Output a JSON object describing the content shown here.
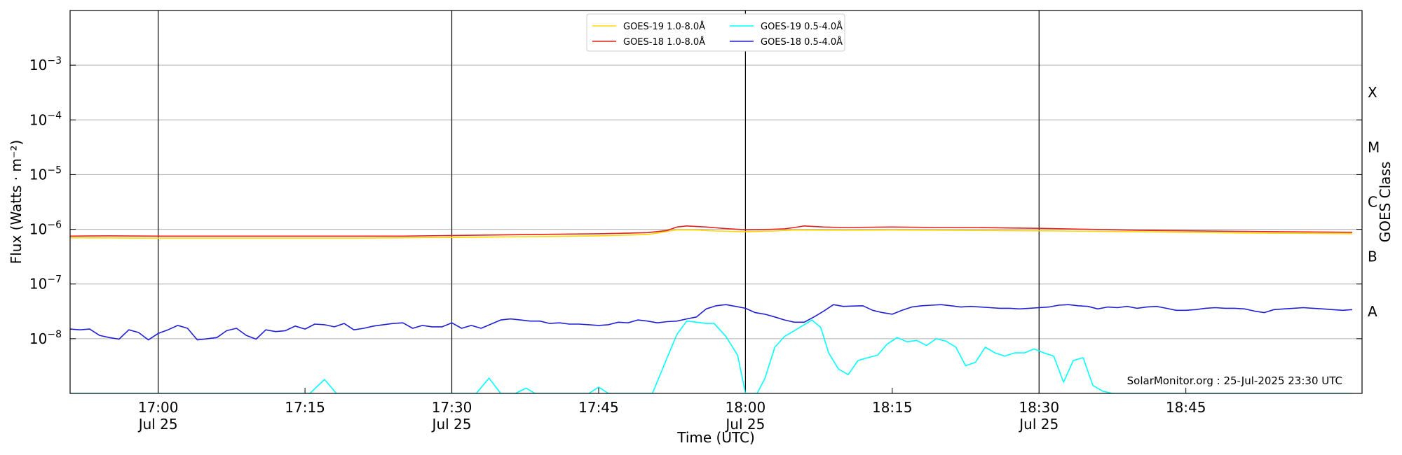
{
  "chart_data": {
    "type": "line",
    "title": "",
    "xlabel": "Time (UTC)",
    "ylabel": "Flux (Watts · m⁻²)",
    "y2label": "GOES Class",
    "yscale": "log",
    "xlim_minutes_utc": [
      1011,
      1143
    ],
    "ylim": [
      1e-09,
      0.01
    ],
    "grid": "horizontal",
    "legend_position": "top-center",
    "x_ticks_major": [
      {
        "minute": 1020,
        "label": "17:00",
        "sublabel": "Jul 25"
      },
      {
        "minute": 1050,
        "label": "17:30",
        "sublabel": "Jul 25"
      },
      {
        "minute": 1080,
        "label": "18:00",
        "sublabel": "Jul 25"
      },
      {
        "minute": 1110,
        "label": "18:30",
        "sublabel": "Jul 25"
      }
    ],
    "x_ticks_minor": [
      {
        "minute": 1035,
        "label": "17:15"
      },
      {
        "minute": 1065,
        "label": "17:45"
      },
      {
        "minute": 1095,
        "label": "18:15"
      },
      {
        "minute": 1125,
        "label": "18:45"
      }
    ],
    "y_ticks": [
      {
        "exp": -8,
        "label": "10",
        "sup": "−8"
      },
      {
        "exp": -7,
        "label": "10",
        "sup": "−7"
      },
      {
        "exp": -6,
        "label": "10",
        "sup": "−6"
      },
      {
        "exp": -5,
        "label": "10",
        "sup": "−5"
      },
      {
        "exp": -4,
        "label": "10",
        "sup": "−4"
      },
      {
        "exp": -3,
        "label": "10",
        "sup": "−3"
      }
    ],
    "goes_classes": [
      {
        "label": "A",
        "exp": -7.5
      },
      {
        "label": "B",
        "exp": -6.5
      },
      {
        "label": "C",
        "exp": -5.5
      },
      {
        "label": "M",
        "exp": -4.5
      },
      {
        "label": "X",
        "exp": -3.5
      }
    ],
    "annotation": "SolarMonitor.org : 25-Jul-2025 23:30 UTC",
    "series": [
      {
        "name": "GOES-19 1.0-8.0Å",
        "color": "#ffd700",
        "x": [
          1011,
          1020,
          1030,
          1040,
          1050,
          1060,
          1065,
          1070,
          1073,
          1075,
          1077,
          1080,
          1083,
          1085,
          1090,
          1095,
          1100,
          1110,
          1120,
          1130,
          1142
        ],
        "values": [
          7e-07,
          6.9e-07,
          6.9e-07,
          6.9e-07,
          7.1e-07,
          7.4e-07,
          7.6e-07,
          8e-07,
          9.8e-07,
          9.7e-07,
          9.3e-07,
          9e-07,
          9.3e-07,
          9.7e-07,
          9.6e-07,
          9.7e-07,
          9.6e-07,
          9.4e-07,
          9e-07,
          8.6e-07,
          8.3e-07
        ]
      },
      {
        "name": "GOES-18 1.0-8.0Å",
        "color": "#e3211c",
        "x": [
          1011,
          1015,
          1020,
          1025,
          1030,
          1035,
          1040,
          1045,
          1050,
          1055,
          1060,
          1065,
          1068,
          1070,
          1072,
          1073,
          1074,
          1076,
          1078,
          1080,
          1082,
          1084,
          1085,
          1086,
          1088,
          1090,
          1095,
          1100,
          1105,
          1110,
          1115,
          1120,
          1125,
          1130,
          1135,
          1142
        ],
        "values": [
          7.5e-07,
          7.6e-07,
          7.5e-07,
          7.5e-07,
          7.5e-07,
          7.5e-07,
          7.5e-07,
          7.5e-07,
          7.7e-07,
          7.9e-07,
          8.1e-07,
          8.3e-07,
          8.5e-07,
          8.7e-07,
          9.5e-07,
          1.1e-06,
          1.15e-06,
          1.1e-06,
          1.03e-06,
          9.8e-07,
          9.9e-07,
          1.02e-06,
          1.08e-06,
          1.15e-06,
          1.1e-06,
          1.08e-06,
          1.1e-06,
          1.08e-06,
          1.07e-06,
          1.04e-06,
          1e-06,
          9.6e-07,
          9.4e-07,
          9.2e-07,
          9e-07,
          8.8e-07
        ]
      },
      {
        "name": "GOES-19 0.5-4.0Å",
        "color": "#00ffff",
        "x": [
          1011,
          1035.5,
          1037,
          1038.2,
          1052.5,
          1053.8,
          1055,
          1056.5,
          1057.6,
          1058.5,
          1064,
          1065,
          1066,
          1070.5,
          1072,
          1073,
          1074,
          1075,
          1076,
          1076.8,
          1078,
          1079.2,
          1080,
          1081.2,
          1082,
          1083,
          1084,
          1085,
          1086,
          1086.8,
          1087.7,
          1088.5,
          1089.5,
          1090.5,
          1091.5,
          1092.5,
          1093.5,
          1094.5,
          1095.5,
          1096.5,
          1097.5,
          1098.5,
          1099.5,
          1100.5,
          1101.5,
          1102.5,
          1103.5,
          1104.5,
          1105.5,
          1106.5,
          1107.5,
          1108.5,
          1109.5,
          1110.5,
          1111.5,
          1112.5,
          1113.5,
          1114.5,
          1115.5,
          1116.5,
          1117.5,
          1118.5,
          1119.5,
          1120.5,
          1121.5,
          1142
        ],
        "values": [
          6.5e-10,
          8e-10,
          1.8e-09,
          8e-10,
          8e-10,
          1.9e-09,
          8e-10,
          7e-10,
          1.25e-09,
          7e-10,
          7e-10,
          1.3e-09,
          8e-10,
          8e-10,
          4.5e-09,
          1.2e-08,
          2.1e-08,
          2e-08,
          1.9e-08,
          1.9e-08,
          1.1e-08,
          5e-09,
          7e-10,
          7e-10,
          1.9e-09,
          7e-09,
          1.1e-08,
          1.4e-08,
          1.8e-08,
          2.2e-08,
          1.6e-08,
          5.5e-09,
          2.8e-09,
          2.2e-09,
          4e-09,
          4.5e-09,
          5e-09,
          8e-09,
          1.05e-08,
          8.8e-09,
          9.3e-09,
          7.5e-09,
          1e-08,
          9e-09,
          7e-09,
          3.2e-09,
          3.7e-09,
          7e-09,
          5.5e-09,
          4.8e-09,
          5.5e-09,
          5.5e-09,
          6.5e-09,
          5.5e-09,
          4.8e-09,
          1.6e-09,
          4e-09,
          4.5e-09,
          1.4e-09,
          1.1e-09,
          8e-10,
          7e-10,
          7e-10,
          6.5e-10,
          6.5e-10,
          6.5e-10
        ]
      },
      {
        "name": "GOES-18 0.5-4.0Å",
        "color": "#1f1fd6",
        "x": [
          1011,
          1012,
          1013,
          1014,
          1015,
          1016,
          1017,
          1018,
          1019,
          1020,
          1021,
          1022,
          1023,
          1024,
          1025,
          1026,
          1027,
          1028,
          1029,
          1030,
          1031,
          1032,
          1033,
          1034,
          1035,
          1036,
          1037,
          1038,
          1039,
          1040,
          1041,
          1042,
          1043,
          1044,
          1045,
          1046,
          1047,
          1048,
          1049,
          1050,
          1051,
          1052,
          1053,
          1054,
          1055,
          1056,
          1057,
          1058,
          1059,
          1060,
          1061,
          1062,
          1063,
          1064,
          1065,
          1066,
          1067,
          1068,
          1069,
          1070,
          1071,
          1072,
          1073,
          1074,
          1075,
          1076,
          1077,
          1078,
          1079,
          1080,
          1081,
          1082,
          1083,
          1084,
          1085,
          1086,
          1087,
          1088,
          1089,
          1090,
          1091,
          1092,
          1093,
          1094,
          1095,
          1096,
          1097,
          1098,
          1099,
          1100,
          1101,
          1102,
          1103,
          1104,
          1105,
          1106,
          1107,
          1108,
          1109,
          1110,
          1111,
          1112,
          1113,
          1114,
          1115,
          1116,
          1117,
          1118,
          1119,
          1120,
          1121,
          1122,
          1123,
          1124,
          1125,
          1126,
          1127,
          1128,
          1129,
          1130,
          1131,
          1132,
          1133,
          1134,
          1135,
          1136,
          1137,
          1138,
          1139,
          1140,
          1141,
          1142
        ],
        "values": [
          1.5e-08,
          1.45e-08,
          1.5e-08,
          1.15e-08,
          1.05e-08,
          9.8e-09,
          1.45e-08,
          1.3e-08,
          9.5e-09,
          1.25e-08,
          1.45e-08,
          1.75e-08,
          1.55e-08,
          9.5e-09,
          1e-08,
          1.05e-08,
          1.4e-08,
          1.55e-08,
          1.15e-08,
          9.8e-09,
          1.45e-08,
          1.35e-08,
          1.4e-08,
          1.7e-08,
          1.5e-08,
          1.85e-08,
          1.8e-08,
          1.65e-08,
          1.9e-08,
          1.45e-08,
          1.55e-08,
          1.7e-08,
          1.8e-08,
          1.9e-08,
          1.95e-08,
          1.55e-08,
          1.75e-08,
          1.65e-08,
          1.65e-08,
          1.95e-08,
          1.55e-08,
          1.75e-08,
          1.55e-08,
          1.85e-08,
          2.2e-08,
          2.3e-08,
          2.2e-08,
          2.1e-08,
          2.1e-08,
          1.9e-08,
          1.95e-08,
          1.85e-08,
          1.85e-08,
          1.8e-08,
          1.75e-08,
          1.8e-08,
          2e-08,
          1.95e-08,
          2.2e-08,
          2.1e-08,
          1.95e-08,
          2.05e-08,
          2.1e-08,
          2.3e-08,
          2.5e-08,
          3.5e-08,
          4e-08,
          4.2e-08,
          3.9e-08,
          3.6e-08,
          3e-08,
          2.8e-08,
          2.5e-08,
          2.2e-08,
          2e-08,
          2e-08,
          2.5e-08,
          3.2e-08,
          4.2e-08,
          3.9e-08,
          3.95e-08,
          4e-08,
          3.3e-08,
          3e-08,
          2.8e-08,
          3.3e-08,
          3.8e-08,
          4e-08,
          4.1e-08,
          4.2e-08,
          4e-08,
          3.8e-08,
          3.9e-08,
          3.8e-08,
          3.7e-08,
          3.6e-08,
          3.6e-08,
          3.5e-08,
          3.6e-08,
          3.7e-08,
          3.8e-08,
          4.1e-08,
          4.2e-08,
          4e-08,
          3.9e-08,
          3.5e-08,
          3.8e-08,
          3.7e-08,
          3.9e-08,
          3.6e-08,
          3.8e-08,
          3.9e-08,
          3.6e-08,
          3.3e-08,
          3.3e-08,
          3.4e-08,
          3.6e-08,
          3.7e-08,
          3.6e-08,
          3.6e-08,
          3.5e-08,
          3.2e-08,
          3e-08,
          3.4e-08,
          3.5e-08,
          3.6e-08,
          3.7e-08,
          3.6e-08,
          3.5e-08,
          3.4e-08,
          3.3e-08,
          3.4e-08
        ]
      }
    ]
  }
}
